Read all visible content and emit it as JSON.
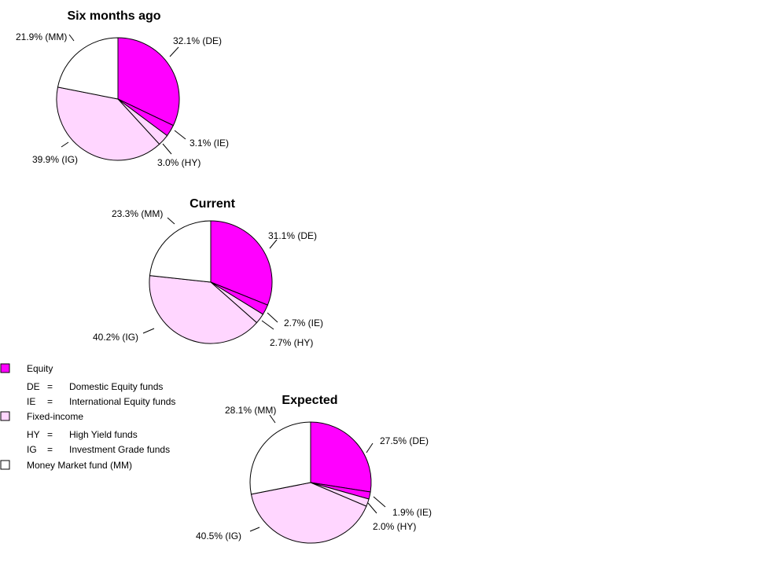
{
  "chart_data": [
    {
      "type": "pie",
      "title": "Six months ago",
      "slices": [
        {
          "key": "DE",
          "value": 32.1,
          "label": "32.1% (DE)",
          "color": "#ff00ff"
        },
        {
          "key": "IE",
          "value": 3.1,
          "label": "3.1% (IE)",
          "color": "#ff00ff"
        },
        {
          "key": "HY",
          "value": 3.0,
          "label": "3.0% (HY)",
          "color": "#ffd6ff"
        },
        {
          "key": "IG",
          "value": 39.9,
          "label": "39.9% (IG)",
          "color": "#ffd6ff"
        },
        {
          "key": "MM",
          "value": 21.9,
          "label": "21.9% (MM)",
          "color": "#ffffff"
        }
      ]
    },
    {
      "type": "pie",
      "title": "Current",
      "slices": [
        {
          "key": "DE",
          "value": 31.1,
          "label": "31.1% (DE)",
          "color": "#ff00ff"
        },
        {
          "key": "IE",
          "value": 2.7,
          "label": "2.7% (IE)",
          "color": "#ff00ff"
        },
        {
          "key": "HY",
          "value": 2.7,
          "label": "2.7% (HY)",
          "color": "#ffd6ff"
        },
        {
          "key": "IG",
          "value": 40.2,
          "label": "40.2% (IG)",
          "color": "#ffd6ff"
        },
        {
          "key": "MM",
          "value": 23.3,
          "label": "23.3% (MM)",
          "color": "#ffffff"
        }
      ]
    },
    {
      "type": "pie",
      "title": "Expected",
      "slices": [
        {
          "key": "DE",
          "value": 27.5,
          "label": "27.5% (DE)",
          "color": "#ff00ff"
        },
        {
          "key": "IE",
          "value": 1.9,
          "label": "1.9% (IE)",
          "color": "#ff00ff"
        },
        {
          "key": "HY",
          "value": 2.0,
          "label": "2.0% (HY)",
          "color": "#ffd6ff"
        },
        {
          "key": "IG",
          "value": 40.5,
          "label": "40.5% (IG)",
          "color": "#ffd6ff"
        },
        {
          "key": "MM",
          "value": 28.1,
          "label": "28.1% (MM)",
          "color": "#ffffff"
        }
      ]
    }
  ],
  "legend": {
    "equity": {
      "label": "Equity",
      "color": "#ff00ff"
    },
    "de": {
      "abbr": "DE",
      "eq": "=",
      "desc": "Domestic Equity funds"
    },
    "ie": {
      "abbr": "IE",
      "eq": "=",
      "desc": "International Equity funds"
    },
    "fixed": {
      "label": "Fixed-income",
      "color": "#ffd6ff"
    },
    "hy": {
      "abbr": "HY",
      "eq": "=",
      "desc": "High Yield funds"
    },
    "ig": {
      "abbr": "IG",
      "eq": "=",
      "desc": "Investment Grade funds"
    },
    "mm": {
      "label": "Money Market fund (MM)",
      "color": "#ffffff"
    }
  }
}
